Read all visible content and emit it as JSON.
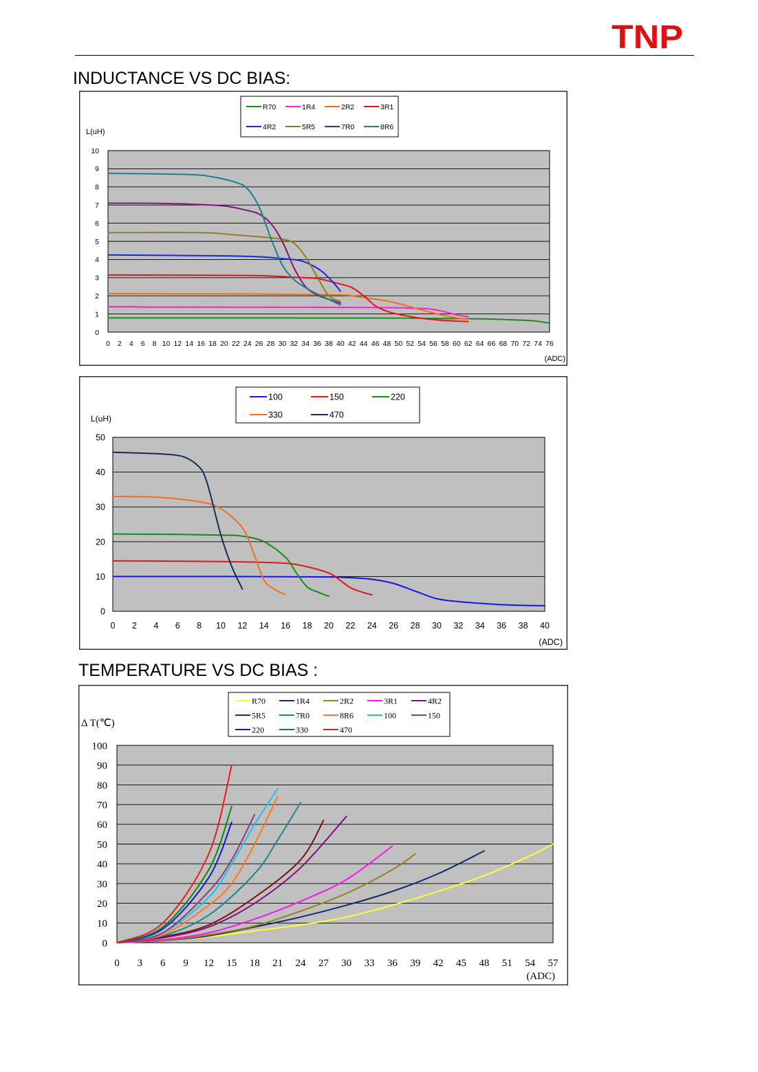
{
  "header": {
    "logo_text": "TNP"
  },
  "headings": {
    "inductance": "INDUCTANCE VS DC BIAS:",
    "temperature": "TEMPERATURE VS DC BIAS :"
  },
  "chart_data": [
    {
      "type": "line",
      "title": "INDUCTANCE VS DC BIAS",
      "ylabel": "L(uH)",
      "xlabel": "(ADC)",
      "xlim": [
        0,
        76
      ],
      "ylim": [
        0,
        10
      ],
      "xticks": [
        "0",
        "2",
        "4",
        "6",
        "8",
        "10",
        "12",
        "14",
        "16",
        "18",
        "20",
        "22",
        "24",
        "26",
        "28",
        "30",
        "32",
        "34",
        "36",
        "38",
        "40",
        "42",
        "44",
        "46",
        "48",
        "50",
        "52",
        "54",
        "56",
        "58",
        "60",
        "62",
        "64",
        "66",
        "68",
        "70",
        "72",
        "74",
        "76"
      ],
      "yticks": [
        "0",
        "1",
        "2",
        "3",
        "4",
        "5",
        "6",
        "7",
        "8",
        "9",
        "10"
      ],
      "grid": true,
      "legend_columns": 4,
      "series": [
        {
          "name": "R70",
          "color": "#1e8a1e",
          "points": [
            [
              0,
              0.78
            ],
            [
              30,
              0.78
            ],
            [
              50,
              0.77
            ],
            [
              62,
              0.74
            ],
            [
              66,
              0.72
            ],
            [
              70,
              0.67
            ],
            [
              73,
              0.63
            ],
            [
              76,
              0.5
            ]
          ]
        },
        {
          "name": "1R4",
          "color": "#ff1ed7",
          "points": [
            [
              0,
              1.4
            ],
            [
              4,
              1.4
            ],
            [
              8,
              1.38
            ],
            [
              30,
              1.37
            ],
            [
              48,
              1.35
            ],
            [
              54,
              1.3
            ],
            [
              56,
              1.25
            ],
            [
              58,
              1.12
            ],
            [
              60,
              0.95
            ],
            [
              62,
              0.85
            ]
          ]
        },
        {
          "name": "2R2",
          "color": "#f07014",
          "points": [
            [
              0,
              2.12
            ],
            [
              26,
              2.1
            ],
            [
              40,
              2.05
            ],
            [
              42,
              2.0
            ],
            [
              44,
              1.9
            ],
            [
              48,
              1.72
            ],
            [
              52,
              1.4
            ],
            [
              56,
              1.05
            ],
            [
              60,
              0.78
            ],
            [
              62,
              0.72
            ]
          ]
        },
        {
          "name": "3R1",
          "color": "#e61414",
          "points": [
            [
              0,
              3.15
            ],
            [
              24,
              3.12
            ],
            [
              32,
              3.02
            ],
            [
              36,
              2.95
            ],
            [
              40,
              2.65
            ],
            [
              42,
              2.45
            ],
            [
              44,
              2.0
            ],
            [
              46,
              1.45
            ],
            [
              48,
              1.15
            ],
            [
              50,
              0.98
            ],
            [
              54,
              0.76
            ],
            [
              58,
              0.64
            ],
            [
              62,
              0.58
            ]
          ]
        },
        {
          "name": "4R2",
          "color": "#1428dc",
          "points": [
            [
              0,
              4.25
            ],
            [
              20,
              4.2
            ],
            [
              26,
              4.15
            ],
            [
              30,
              4.05
            ],
            [
              33,
              3.95
            ],
            [
              35,
              3.7
            ],
            [
              37,
              3.3
            ],
            [
              39,
              2.65
            ],
            [
              40,
              2.25
            ]
          ]
        },
        {
          "name": "5R5",
          "color": "#8c8214",
          "points": [
            [
              0,
              5.48
            ],
            [
              16,
              5.48
            ],
            [
              22,
              5.35
            ],
            [
              26,
              5.25
            ],
            [
              30,
              5.12
            ],
            [
              32,
              4.9
            ],
            [
              34,
              4.15
            ],
            [
              36,
              3.05
            ],
            [
              38,
              2.0
            ],
            [
              40,
              1.7
            ]
          ]
        },
        {
          "name": "7R0",
          "color": "#7d1482",
          "points": [
            [
              0,
              7.1
            ],
            [
              6,
              7.1
            ],
            [
              14,
              7.05
            ],
            [
              20,
              6.95
            ],
            [
              24,
              6.7
            ],
            [
              26,
              6.5
            ],
            [
              28,
              6.0
            ],
            [
              30,
              5.0
            ],
            [
              32,
              3.55
            ],
            [
              34,
              2.5
            ],
            [
              36,
              2.05
            ],
            [
              38,
              1.8
            ],
            [
              40,
              1.6
            ]
          ]
        },
        {
          "name": "8R6",
          "color": "#17828c",
          "points": [
            [
              0,
              8.75
            ],
            [
              14,
              8.68
            ],
            [
              18,
              8.55
            ],
            [
              22,
              8.25
            ],
            [
              24,
              7.9
            ],
            [
              26,
              6.9
            ],
            [
              28,
              5.2
            ],
            [
              30,
              3.7
            ],
            [
              32,
              2.9
            ],
            [
              34,
              2.45
            ],
            [
              36,
              2.1
            ],
            [
              38,
              1.8
            ],
            [
              40,
              1.5
            ]
          ]
        }
      ]
    },
    {
      "type": "line",
      "title": "INDUCTANCE VS DC BIAS",
      "ylabel": "L(uH)",
      "xlabel": "(ADC)",
      "xlim": [
        0,
        40
      ],
      "ylim": [
        0,
        50
      ],
      "xticks": [
        "0",
        "2",
        "4",
        "6",
        "8",
        "10",
        "12",
        "14",
        "16",
        "18",
        "20",
        "22",
        "24",
        "26",
        "28",
        "30",
        "32",
        "34",
        "36",
        "38",
        "40"
      ],
      "yticks": [
        "0",
        "10",
        "20",
        "30",
        "40",
        "50"
      ],
      "grid": true,
      "legend_columns": 3,
      "series": [
        {
          "name": "100",
          "color": "#1414e6",
          "points": [
            [
              0,
              10
            ],
            [
              10,
              10
            ],
            [
              18,
              9.9
            ],
            [
              21,
              9.8
            ],
            [
              24,
              9.2
            ],
            [
              26,
              8.0
            ],
            [
              28,
              5.8
            ],
            [
              30,
              3.6
            ],
            [
              32,
              2.8
            ],
            [
              34,
              2.3
            ],
            [
              36,
              1.9
            ],
            [
              38,
              1.7
            ],
            [
              40,
              1.6
            ]
          ]
        },
        {
          "name": "150",
          "color": "#e61414",
          "points": [
            [
              0,
              14.5
            ],
            [
              6,
              14.4
            ],
            [
              12,
              14.2
            ],
            [
              16,
              13.8
            ],
            [
              18,
              12.8
            ],
            [
              20,
              11.0
            ],
            [
              21,
              9.0
            ],
            [
              22,
              6.8
            ],
            [
              23,
              5.6
            ],
            [
              24,
              4.7
            ]
          ]
        },
        {
          "name": "220",
          "color": "#148c14",
          "points": [
            [
              0,
              22.2
            ],
            [
              6,
              22.1
            ],
            [
              10,
              21.9
            ],
            [
              12,
              21.6
            ],
            [
              14,
              20.0
            ],
            [
              16,
              15.5
            ],
            [
              17,
              11.0
            ],
            [
              18,
              7.0
            ],
            [
              19,
              5.5
            ],
            [
              20,
              4.3
            ]
          ]
        },
        {
          "name": "330",
          "color": "#f06e1e",
          "points": [
            [
              0,
              33
            ],
            [
              4,
              32.8
            ],
            [
              8,
              31.5
            ],
            [
              10,
              29.5
            ],
            [
              12,
              24.0
            ],
            [
              13,
              17.0
            ],
            [
              14,
              9.0
            ],
            [
              15,
              6.3
            ],
            [
              16,
              4.8
            ]
          ]
        },
        {
          "name": "470",
          "color": "#0f2d55",
          "points": [
            [
              0,
              45.7
            ],
            [
              4,
              45.3
            ],
            [
              6,
              44.8
            ],
            [
              7,
              43.8
            ],
            [
              8,
              41.5
            ],
            [
              8.5,
              39.0
            ],
            [
              9,
              34.0
            ],
            [
              10,
              22.0
            ],
            [
              11,
              13.0
            ],
            [
              12,
              6.4
            ]
          ]
        }
      ]
    },
    {
      "type": "line",
      "title": "TEMPERATURE VS DC BIAS",
      "ylabel": "Δ T(℃)",
      "xlabel": "(ADC)",
      "xlim": [
        0,
        57
      ],
      "ylim": [
        0,
        100
      ],
      "xticks": [
        "0",
        "3",
        "6",
        "9",
        "12",
        "15",
        "18",
        "21",
        "24",
        "27",
        "30",
        "33",
        "36",
        "39",
        "42",
        "45",
        "48",
        "51",
        "54",
        "57"
      ],
      "yticks": [
        "0",
        "10",
        "20",
        "30",
        "40",
        "50",
        "60",
        "70",
        "80",
        "90",
        "100"
      ],
      "grid": true,
      "legend_columns": 5,
      "series": [
        {
          "name": "R70",
          "color": "#ffff32",
          "points": [
            [
              0,
              0
            ],
            [
              6,
              1
            ],
            [
              12,
              3
            ],
            [
              18,
              6
            ],
            [
              24,
              9
            ],
            [
              30,
              13
            ],
            [
              36,
              19
            ],
            [
              42,
              26
            ],
            [
              48,
              34
            ],
            [
              54,
              44
            ],
            [
              57,
              50
            ]
          ]
        },
        {
          "name": "1R4",
          "color": "#0f2d69",
          "points": [
            [
              0,
              0
            ],
            [
              6,
              1
            ],
            [
              12,
              3.5
            ],
            [
              18,
              8
            ],
            [
              24,
              13
            ],
            [
              30,
              19
            ],
            [
              36,
              26
            ],
            [
              42,
              35
            ],
            [
              48,
              46.5
            ]
          ]
        },
        {
          "name": "2R2",
          "color": "#96821e",
          "points": [
            [
              0,
              0
            ],
            [
              6,
              1
            ],
            [
              12,
              4
            ],
            [
              18,
              8.5
            ],
            [
              24,
              16
            ],
            [
              30,
              25
            ],
            [
              36,
              37
            ],
            [
              39,
              45
            ]
          ]
        },
        {
          "name": "3R1",
          "color": "#ff14f0",
          "points": [
            [
              0,
              0
            ],
            [
              6,
              1.5
            ],
            [
              12,
              5
            ],
            [
              18,
              12
            ],
            [
              24,
              21
            ],
            [
              30,
              32
            ],
            [
              36,
              49
            ]
          ]
        },
        {
          "name": "4R2",
          "color": "#820f82",
          "points": [
            [
              0,
              0
            ],
            [
              6,
              2.5
            ],
            [
              12,
              8
            ],
            [
              18,
              20
            ],
            [
              24,
              38
            ],
            [
              30,
              64
            ]
          ]
        },
        {
          "name": "5R5",
          "color": "#781414",
          "points": [
            [
              0,
              0
            ],
            [
              6,
              3
            ],
            [
              12,
              9
            ],
            [
              18,
              23
            ],
            [
              24,
              42
            ],
            [
              27,
              62
            ]
          ]
        },
        {
          "name": "7R0",
          "color": "#198791",
          "points": [
            [
              0,
              0
            ],
            [
              6,
              3.5
            ],
            [
              12,
              14
            ],
            [
              18,
              35
            ],
            [
              21,
              52
            ],
            [
              24,
              71
            ]
          ]
        },
        {
          "name": "8R6",
          "color": "#ff7819",
          "points": [
            [
              0,
              0
            ],
            [
              6,
              4
            ],
            [
              12,
              19
            ],
            [
              15,
              30
            ],
            [
              18,
              50
            ],
            [
              21,
              74
            ]
          ]
        },
        {
          "name": "100",
          "color": "#19c3eb",
          "points": [
            [
              0,
              0
            ],
            [
              6,
              5
            ],
            [
              12,
              23
            ],
            [
              15,
              40
            ],
            [
              18,
              60
            ],
            [
              21,
              78
            ]
          ]
        },
        {
          "name": "150",
          "color": "#8c3c82",
          "points": [
            [
              0,
              0
            ],
            [
              6,
              5
            ],
            [
              12,
              26
            ],
            [
              15,
              42
            ],
            [
              18,
              65
            ]
          ]
        },
        {
          "name": "220",
          "color": "#1414e1",
          "points": [
            [
              0,
              0
            ],
            [
              6,
              7
            ],
            [
              12,
              33
            ],
            [
              15,
              61
            ]
          ]
        },
        {
          "name": "330",
          "color": "#0f870f",
          "points": [
            [
              0,
              0
            ],
            [
              6,
              8
            ],
            [
              12,
              37
            ],
            [
              15,
              69
            ]
          ]
        },
        {
          "name": "470",
          "color": "#f01919",
          "points": [
            [
              0,
              0
            ],
            [
              6,
              10
            ],
            [
              12,
              45
            ],
            [
              15,
              90
            ]
          ]
        }
      ]
    }
  ]
}
